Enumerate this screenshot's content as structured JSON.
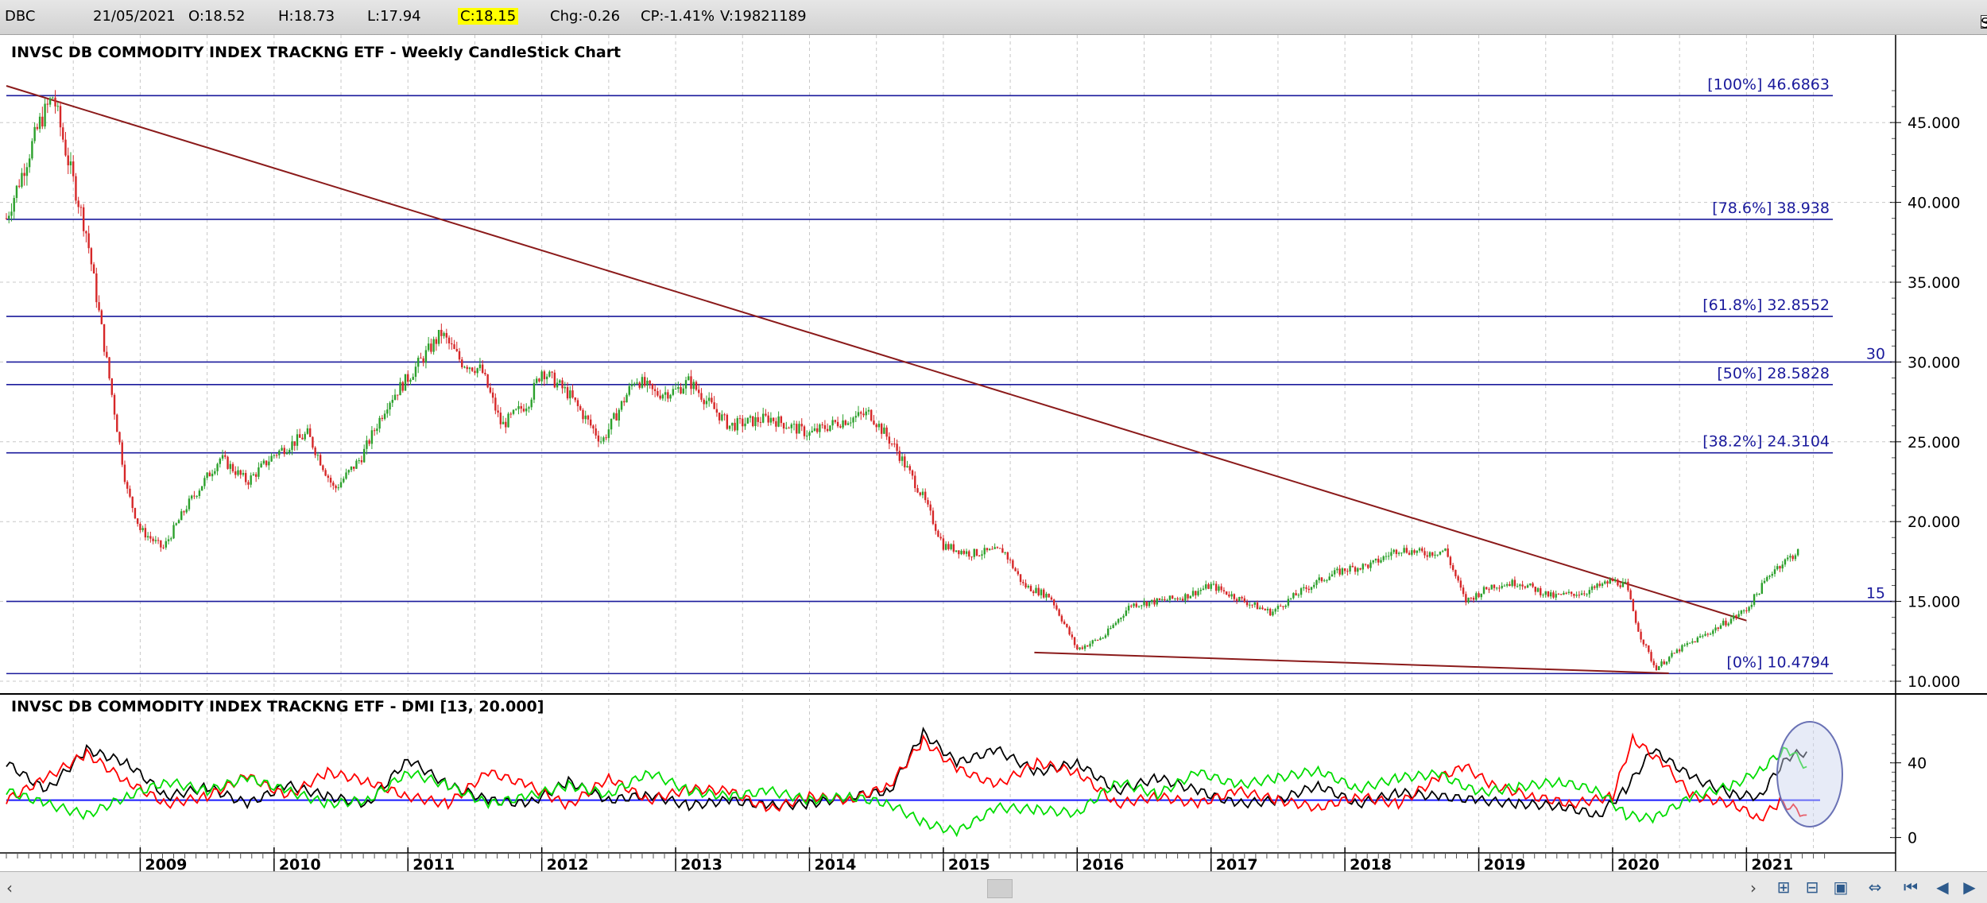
{
  "header": {
    "symbol": "DBC",
    "date": "21/05/2021",
    "open": "O:18.52",
    "high": "H:18.73",
    "low": "L:17.94",
    "close": "C:18.15",
    "change": "Chg:-0.26",
    "change_pct": "CP:-1.41%",
    "volume": "V:19821189",
    "show_last": "Show Last"
  },
  "chart_data": [
    {
      "type": "candlestick",
      "title": "INVSC DB COMMODITY INDEX TRACKNG ETF - Weekly CandleStick Chart",
      "x_ticks": [
        "2009",
        "2010",
        "2011",
        "2012",
        "2013",
        "2014",
        "2015",
        "2016",
        "2017",
        "2018",
        "2019",
        "2020",
        "2021"
      ],
      "y_ticks": [
        "10.000",
        "15.000",
        "20.000",
        "25.000",
        "30.000",
        "35.000",
        "40.000",
        "45.000"
      ],
      "ylim": [
        10,
        47.5
      ],
      "grid": true,
      "price_path": [
        [
          2008.0,
          39.0
        ],
        [
          2008.25,
          45.0
        ],
        [
          2008.35,
          46.7
        ],
        [
          2008.45,
          43.0
        ],
        [
          2008.6,
          38.0
        ],
        [
          2008.75,
          30.0
        ],
        [
          2008.9,
          22.0
        ],
        [
          2009.0,
          19.5
        ],
        [
          2009.17,
          18.3
        ],
        [
          2009.35,
          21.0
        ],
        [
          2009.6,
          24.0
        ],
        [
          2009.8,
          22.5
        ],
        [
          2010.0,
          24.2
        ],
        [
          2010.25,
          25.5
        ],
        [
          2010.45,
          22.0
        ],
        [
          2010.65,
          24.0
        ],
        [
          2010.85,
          27.5
        ],
        [
          2011.0,
          29.0
        ],
        [
          2011.25,
          31.8
        ],
        [
          2011.4,
          30.0
        ],
        [
          2011.55,
          29.5
        ],
        [
          2011.7,
          26.0
        ],
        [
          2011.9,
          27.5
        ],
        [
          2012.0,
          29.5
        ],
        [
          2012.2,
          28.0
        ],
        [
          2012.45,
          25.0
        ],
        [
          2012.7,
          29.0
        ],
        [
          2012.85,
          28.0
        ],
        [
          2013.0,
          28.2
        ],
        [
          2013.1,
          28.8
        ],
        [
          2013.4,
          26.0
        ],
        [
          2013.7,
          26.5
        ],
        [
          2014.0,
          25.5
        ],
        [
          2014.2,
          26.2
        ],
        [
          2014.45,
          26.8
        ],
        [
          2014.65,
          24.5
        ],
        [
          2014.85,
          21.5
        ],
        [
          2015.0,
          18.5
        ],
        [
          2015.2,
          18.0
        ],
        [
          2015.45,
          18.2
        ],
        [
          2015.6,
          16.0
        ],
        [
          2015.8,
          15.3
        ],
        [
          2016.0,
          12.0
        ],
        [
          2016.2,
          12.8
        ],
        [
          2016.4,
          14.8
        ],
        [
          2016.6,
          15.0
        ],
        [
          2016.8,
          15.3
        ],
        [
          2017.0,
          16.0
        ],
        [
          2017.25,
          15.0
        ],
        [
          2017.45,
          14.3
        ],
        [
          2017.65,
          15.5
        ],
        [
          2017.85,
          16.5
        ],
        [
          2018.0,
          17.0
        ],
        [
          2018.2,
          17.3
        ],
        [
          2018.4,
          18.3
        ],
        [
          2018.6,
          18.0
        ],
        [
          2018.75,
          18.2
        ],
        [
          2018.9,
          15.0
        ],
        [
          2019.1,
          16.0
        ],
        [
          2019.3,
          16.2
        ],
        [
          2019.55,
          15.3
        ],
        [
          2019.8,
          15.6
        ],
        [
          2020.0,
          16.3
        ],
        [
          2020.1,
          16.0
        ],
        [
          2020.2,
          13.0
        ],
        [
          2020.32,
          10.8
        ],
        [
          2020.5,
          12.0
        ],
        [
          2020.75,
          13.2
        ],
        [
          2021.0,
          14.5
        ],
        [
          2021.2,
          17.0
        ],
        [
          2021.39,
          18.15
        ]
      ],
      "horizontal_lines": [
        {
          "label": "[100%] 46.6863",
          "value": 46.6863
        },
        {
          "label": "[78.6%] 38.938",
          "value": 38.938
        },
        {
          "label": "[61.8%] 32.8552",
          "value": 32.8552
        },
        {
          "label": "30",
          "value": 30.0
        },
        {
          "label": "[50%] 28.5828",
          "value": 28.5828
        },
        {
          "label": "[38.2%] 24.3104",
          "value": 24.3104
        },
        {
          "label": "15",
          "value": 15.0
        },
        {
          "label": "[0%] 10.4794",
          "value": 10.4794
        }
      ],
      "trendlines": [
        {
          "from": [
            2008.0,
            47.3
          ],
          "to": [
            2021.0,
            13.8
          ]
        },
        {
          "from": [
            2015.68,
            11.8
          ],
          "to": [
            2020.42,
            10.5
          ]
        }
      ],
      "colors": {
        "up": "#2ca02c",
        "down": "#d62728",
        "level": "#1a1a9c",
        "trend": "#8b1a1a"
      }
    },
    {
      "type": "line",
      "title": "INVSC DB COMMODITY INDEX TRACKNG ETF - DMI [13, 20.000]",
      "y_ticks": [
        "0",
        "40"
      ],
      "ylim": [
        -4,
        62
      ],
      "threshold": 20,
      "series": [
        {
          "color": "#000000",
          "values": [
            [
              2008.0,
              40
            ],
            [
              2008.3,
              25
            ],
            [
              2008.6,
              47
            ],
            [
              2008.9,
              40
            ],
            [
              2009.2,
              22
            ],
            [
              2009.5,
              27
            ],
            [
              2009.8,
              18
            ],
            [
              2010.1,
              28
            ],
            [
              2010.4,
              22
            ],
            [
              2010.7,
              18
            ],
            [
              2011.0,
              42
            ],
            [
              2011.3,
              28
            ],
            [
              2011.6,
              20
            ],
            [
              2011.9,
              18
            ],
            [
              2012.2,
              30
            ],
            [
              2012.5,
              20
            ],
            [
              2012.8,
              23
            ],
            [
              2013.1,
              17
            ],
            [
              2013.4,
              20
            ],
            [
              2013.7,
              17
            ],
            [
              2014.0,
              18
            ],
            [
              2014.3,
              22
            ],
            [
              2014.6,
              25
            ],
            [
              2014.85,
              56
            ],
            [
              2015.1,
              40
            ],
            [
              2015.4,
              47
            ],
            [
              2015.7,
              35
            ],
            [
              2016.0,
              40
            ],
            [
              2016.3,
              25
            ],
            [
              2016.6,
              32
            ],
            [
              2016.9,
              25
            ],
            [
              2017.2,
              18
            ],
            [
              2017.5,
              20
            ],
            [
              2017.8,
              28
            ],
            [
              2018.1,
              18
            ],
            [
              2018.4,
              24
            ],
            [
              2018.7,
              22
            ],
            [
              2019.0,
              20
            ],
            [
              2019.3,
              18
            ],
            [
              2019.6,
              17
            ],
            [
              2019.9,
              12
            ],
            [
              2020.1,
              26
            ],
            [
              2020.3,
              47
            ],
            [
              2020.6,
              32
            ],
            [
              2020.9,
              23
            ],
            [
              2021.1,
              22
            ],
            [
              2021.3,
              43
            ],
            [
              2021.45,
              46
            ]
          ]
        },
        {
          "color": "#ff0000",
          "values": [
            [
              2008.0,
              20
            ],
            [
              2008.3,
              32
            ],
            [
              2008.6,
              45
            ],
            [
              2008.9,
              30
            ],
            [
              2009.2,
              18
            ],
            [
              2009.5,
              22
            ],
            [
              2009.8,
              33
            ],
            [
              2010.1,
              22
            ],
            [
              2010.4,
              35
            ],
            [
              2010.7,
              30
            ],
            [
              2011.0,
              22
            ],
            [
              2011.3,
              18
            ],
            [
              2011.6,
              35
            ],
            [
              2011.9,
              28
            ],
            [
              2012.2,
              17
            ],
            [
              2012.5,
              32
            ],
            [
              2012.8,
              20
            ],
            [
              2013.1,
              26
            ],
            [
              2013.4,
              25
            ],
            [
              2013.7,
              15
            ],
            [
              2014.0,
              22
            ],
            [
              2014.3,
              20
            ],
            [
              2014.6,
              28
            ],
            [
              2014.85,
              52
            ],
            [
              2015.1,
              37
            ],
            [
              2015.4,
              28
            ],
            [
              2015.7,
              40
            ],
            [
              2016.0,
              35
            ],
            [
              2016.3,
              18
            ],
            [
              2016.6,
              22
            ],
            [
              2016.9,
              18
            ],
            [
              2017.2,
              25
            ],
            [
              2017.5,
              20
            ],
            [
              2017.8,
              16
            ],
            [
              2018.1,
              22
            ],
            [
              2018.4,
              18
            ],
            [
              2018.7,
              32
            ],
            [
              2018.9,
              38
            ],
            [
              2019.1,
              28
            ],
            [
              2019.4,
              22
            ],
            [
              2019.7,
              18
            ],
            [
              2020.0,
              22
            ],
            [
              2020.15,
              53
            ],
            [
              2020.4,
              38
            ],
            [
              2020.6,
              22
            ],
            [
              2020.9,
              18
            ],
            [
              2021.1,
              10
            ],
            [
              2021.25,
              19
            ],
            [
              2021.45,
              12
            ]
          ]
        },
        {
          "color": "#00dd00",
          "values": [
            [
              2008.0,
              25
            ],
            [
              2008.3,
              18
            ],
            [
              2008.6,
              12
            ],
            [
              2008.9,
              22
            ],
            [
              2009.2,
              30
            ],
            [
              2009.5,
              25
            ],
            [
              2009.8,
              32
            ],
            [
              2010.1,
              25
            ],
            [
              2010.4,
              18
            ],
            [
              2010.7,
              20
            ],
            [
              2011.0,
              35
            ],
            [
              2011.3,
              28
            ],
            [
              2011.6,
              18
            ],
            [
              2011.9,
              22
            ],
            [
              2012.2,
              28
            ],
            [
              2012.5,
              23
            ],
            [
              2012.8,
              35
            ],
            [
              2013.1,
              25
            ],
            [
              2013.4,
              22
            ],
            [
              2013.7,
              25
            ],
            [
              2014.0,
              20
            ],
            [
              2014.3,
              22
            ],
            [
              2014.6,
              18
            ],
            [
              2014.85,
              8
            ],
            [
              2015.1,
              3
            ],
            [
              2015.4,
              16
            ],
            [
              2015.7,
              15
            ],
            [
              2016.0,
              13
            ],
            [
              2016.3,
              30
            ],
            [
              2016.6,
              23
            ],
            [
              2016.9,
              35
            ],
            [
              2017.2,
              28
            ],
            [
              2017.5,
              32
            ],
            [
              2017.8,
              36
            ],
            [
              2018.1,
              26
            ],
            [
              2018.4,
              32
            ],
            [
              2018.7,
              34
            ],
            [
              2019.0,
              24
            ],
            [
              2019.3,
              27
            ],
            [
              2019.6,
              30
            ],
            [
              2019.9,
              25
            ],
            [
              2020.1,
              12
            ],
            [
              2020.3,
              10
            ],
            [
              2020.6,
              22
            ],
            [
              2020.9,
              28
            ],
            [
              2021.1,
              36
            ],
            [
              2021.3,
              48
            ],
            [
              2021.45,
              38
            ]
          ]
        }
      ]
    }
  ]
}
